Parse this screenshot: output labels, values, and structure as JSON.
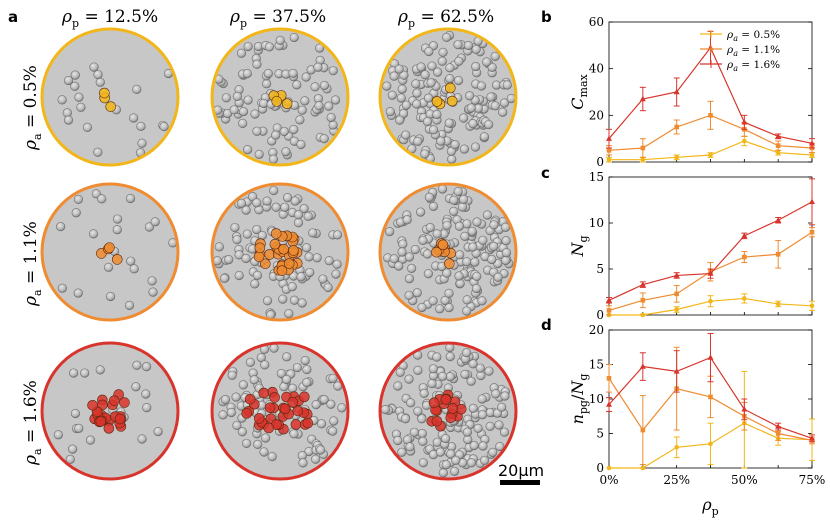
{
  "panels": {
    "a": "a",
    "b": "b",
    "c": "c",
    "d": "d"
  },
  "columns": [
    {
      "sym": "ρ",
      "sub": "p",
      "value": " = 12.5%"
    },
    {
      "sym": "ρ",
      "sub": "p",
      "value": " = 37.5%"
    },
    {
      "sym": "ρ",
      "sub": "p",
      "value": " = 62.5%"
    }
  ],
  "rows": [
    {
      "sym": "ρ",
      "sub": "a",
      "value": " = 0.5%"
    },
    {
      "sym": "ρ",
      "sub": "a",
      "value": " = 1.1%"
    },
    {
      "sym": "ρ",
      "sub": "a",
      "value": " = 1.6%"
    }
  ],
  "scale_bar": "20μm",
  "colors": {
    "low": "#f2b619",
    "mid": "#ef8b30",
    "high": "#d8342c",
    "cell": "#b9b9b9",
    "bg": "#c7c7c7"
  },
  "chart_data": [
    {
      "type": "line",
      "panel": "b",
      "ylabel_sym": "C",
      "ylabel_sub": "max",
      "x": [
        0,
        12.5,
        25,
        37.5,
        50,
        62.5,
        75
      ],
      "xlim": [
        0,
        75
      ],
      "ylim": [
        0,
        60
      ],
      "yticks": [
        "0",
        "20",
        "40",
        "60"
      ],
      "legend_position": "top-right",
      "series": [
        {
          "name": "ρa = 0.5%",
          "color": "low",
          "marker": "circle",
          "values": [
            1,
            1,
            2,
            3,
            9,
            4,
            3
          ],
          "errors": [
            1,
            1,
            1,
            1,
            2,
            1,
            1
          ]
        },
        {
          "name": "ρa = 1.1%",
          "color": "mid",
          "marker": "square",
          "values": [
            5,
            6,
            15,
            20,
            14,
            7,
            6
          ],
          "errors": [
            2,
            4,
            3,
            6,
            3,
            2,
            2
          ]
        },
        {
          "name": "ρa = 1.6%",
          "color": "high",
          "marker": "triangle",
          "values": [
            10,
            27,
            30,
            49,
            17,
            11,
            8
          ],
          "errors": [
            4,
            5,
            6,
            7,
            3,
            1,
            2
          ]
        }
      ]
    },
    {
      "type": "line",
      "panel": "c",
      "ylabel_sym": "N",
      "ylabel_sub": "g",
      "x": [
        0,
        12.5,
        25,
        37.5,
        50,
        62.5,
        75
      ],
      "xlim": [
        0,
        75
      ],
      "ylim": [
        0,
        15
      ],
      "yticks": [
        "0",
        "5",
        "10",
        "15"
      ],
      "series": [
        {
          "name": "ρa = 0.5%",
          "color": "low",
          "marker": "circle",
          "values": [
            0,
            0,
            0.6,
            1.5,
            1.8,
            1.2,
            1.0
          ],
          "errors": [
            0,
            0.1,
            0.3,
            0.6,
            0.5,
            0.3,
            0.5
          ]
        },
        {
          "name": "ρa = 1.1%",
          "color": "mid",
          "marker": "square",
          "values": [
            0.5,
            1.6,
            2.3,
            4.7,
            6.3,
            6.6,
            9.0
          ],
          "errors": [
            0.5,
            0.8,
            0.9,
            1.0,
            0.6,
            1.5,
            0.5
          ]
        },
        {
          "name": "ρa = 1.6%",
          "color": "high",
          "marker": "triangle",
          "values": [
            1.6,
            3.3,
            4.3,
            4.5,
            8.6,
            10.3,
            12.3
          ],
          "errors": [
            0.3,
            0.3,
            0.3,
            0.5,
            0.3,
            0.3,
            2.5
          ]
        }
      ]
    },
    {
      "type": "line",
      "panel": "d",
      "ylabel_sym": "n",
      "ylabel_sub": "pg",
      "ylabel_sym2": "N",
      "ylabel_sub2": "g",
      "x": [
        0,
        12.5,
        25,
        37.5,
        50,
        62.5,
        75
      ],
      "xlim": [
        0,
        75
      ],
      "ylim": [
        0,
        20
      ],
      "yticks": [
        "0",
        "5",
        "10",
        "15",
        "20"
      ],
      "xticks": [
        "0%",
        "25%",
        "50%",
        "75%"
      ],
      "xtick_values": [
        0,
        25,
        50,
        75
      ],
      "xlabel_sym": "ρ",
      "xlabel_sub": "p",
      "series": [
        {
          "name": "ρa = 0.5%",
          "color": "low",
          "marker": "circle",
          "values": [
            0,
            0,
            3,
            3.5,
            6.5,
            4.3,
            4.1
          ],
          "errors": [
            0,
            0,
            1.5,
            3,
            7.5,
            1,
            3
          ]
        },
        {
          "name": "ρa = 1.1%",
          "color": "mid",
          "marker": "square",
          "values": [
            13,
            5.5,
            11.5,
            10.3,
            7.5,
            5,
            4
          ],
          "errors": [
            2,
            5,
            6,
            3,
            2,
            1,
            0.5
          ]
        },
        {
          "name": "ρa = 1.6%",
          "color": "high",
          "marker": "triangle",
          "values": [
            9.2,
            14.7,
            14,
            16,
            8.5,
            6,
            4.3
          ],
          "errors": [
            1,
            2,
            3,
            3.5,
            1.5,
            0.5,
            0.5
          ]
        }
      ]
    }
  ]
}
